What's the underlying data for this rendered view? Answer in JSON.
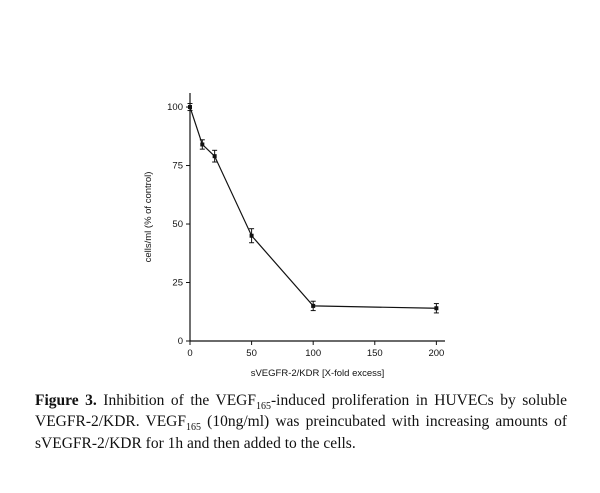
{
  "chart_data": {
    "type": "line",
    "x": [
      0,
      10,
      20,
      50,
      100,
      200
    ],
    "y": [
      100,
      84,
      79,
      45,
      15,
      14
    ],
    "yerr": [
      1.5,
      2,
      2.5,
      3,
      2,
      2
    ],
    "xlabel": "sVEGFR-2/KDR [X-fold excess]",
    "ylabel": "cells/ml (% of control)",
    "xticks": [
      0,
      50,
      100,
      150,
      200
    ],
    "yticks": [
      0,
      25,
      50,
      75,
      100
    ],
    "xlim": [
      0,
      207
    ],
    "ylim": [
      0,
      106
    ],
    "line_color": "#111111",
    "marker": "square",
    "grid": "off",
    "legend": "none"
  },
  "caption": {
    "label": "Figure 3.",
    "seg1": " Inhibition of the VEGF",
    "sub1": "165",
    "seg2": "-induced proliferation in HUVECs by soluble VEGFR-2/KDR. VEGF",
    "sub2": "165",
    "seg3": " (10ng/ml) was preincubated with increasing amounts of sVEGFR-2/KDR for 1h and then added to the cells."
  }
}
